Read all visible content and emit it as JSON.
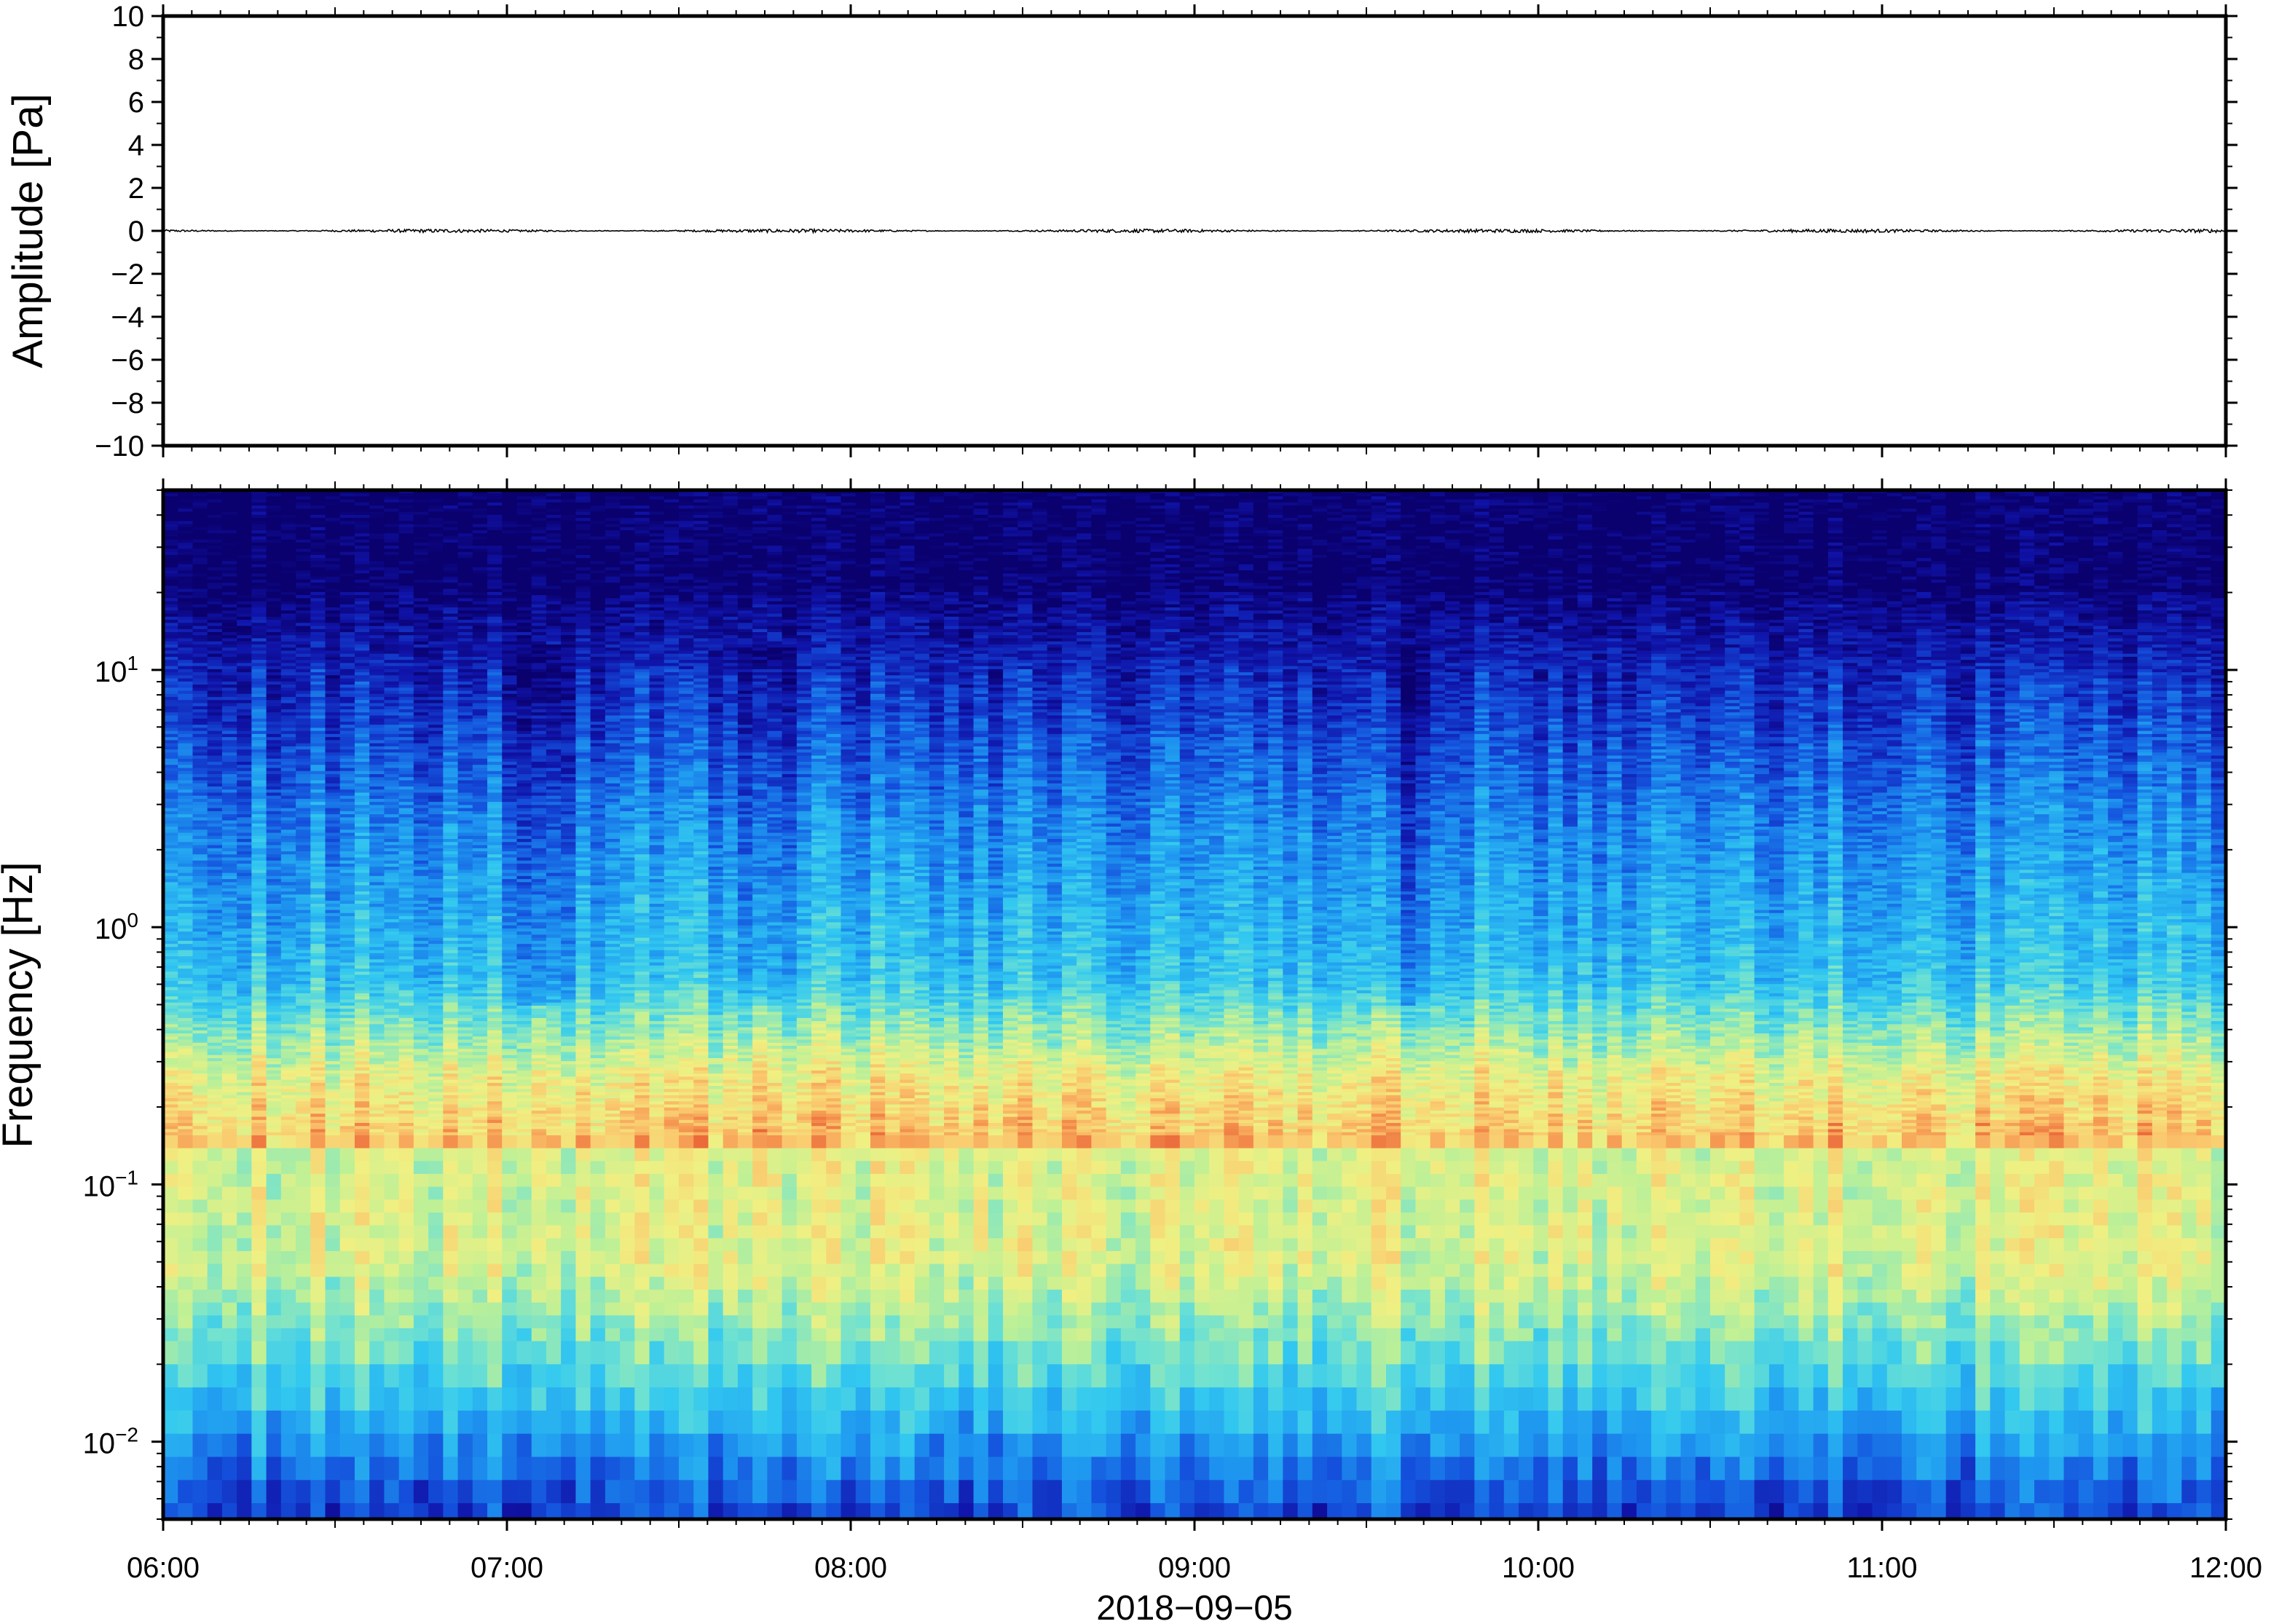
{
  "chart_data": [
    {
      "type": "line",
      "title": "",
      "ylabel": "Amplitude [Pa]",
      "xlabel": "",
      "ylim": [
        -10,
        10
      ],
      "y_ticks": [
        -10,
        -8,
        -6,
        -4,
        -2,
        0,
        2,
        4,
        6,
        8,
        10
      ],
      "y_tick_labels": [
        "−10",
        "−8",
        "−6",
        "−4",
        "−2",
        "0",
        "2",
        "4",
        "6",
        "8",
        "10"
      ],
      "x_range": [
        "06:00",
        "12:00"
      ],
      "series": [
        {
          "values_description": "",
          "approx_amplitude_pa": 0.08,
          "baseline_pa": 0
        }
      ],
      "grid": false,
      "line_color": "#000000"
    },
    {
      "type": "heatmap",
      "title": "",
      "ylabel": "Frequency [Hz]",
      "xlabel": "2018−09−05",
      "y_scale": "log",
      "ylim_hz": [
        0.005,
        50
      ],
      "y_ticks": [
        {
          "value": 0.01,
          "base": "10",
          "exp": "−2"
        },
        {
          "value": 0.1,
          "base": "10",
          "exp": "−1"
        },
        {
          "value": 1,
          "base": "10",
          "exp": "0"
        },
        {
          "value": 10,
          "base": "10",
          "exp": "1"
        }
      ],
      "x_range": [
        "06:00",
        "12:00"
      ],
      "x_tick_labels": [
        "06:00",
        "07:00",
        "08:00",
        "09:00",
        "10:00",
        "11:00",
        "12:00"
      ],
      "colormap": "jet-like (dark blue low, orange high)",
      "features": [
        {
          "band_hz": [
            0.15,
            0.2
          ],
          "level": "high (orange)"
        },
        {
          "band_hz": [
            20,
            50
          ],
          "level": "lowest (dark blue)"
        },
        {
          "band_hz": [
            0.03,
            0.1
          ],
          "level": "medium-high (yellow)"
        }
      ],
      "grid": false
    }
  ]
}
